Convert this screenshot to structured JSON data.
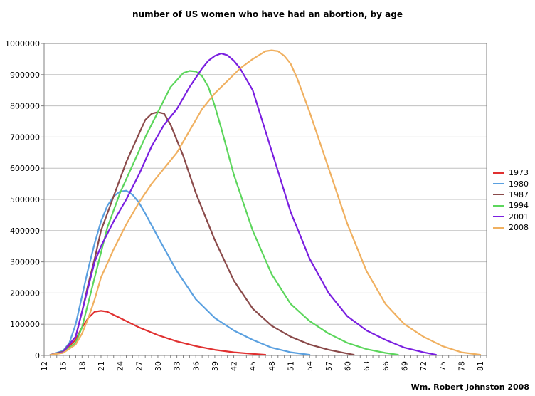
{
  "chart_data": {
    "type": "line",
    "title": "number of US women who have had an abortion, by age",
    "xlabel": "",
    "ylabel": "",
    "xlim": [
      12,
      82
    ],
    "ylim": [
      0,
      1000000
    ],
    "y_ticks": [
      0,
      100000,
      200000,
      300000,
      400000,
      500000,
      600000,
      700000,
      800000,
      900000,
      1000000
    ],
    "x_ticks": [
      12,
      15,
      18,
      21,
      24,
      27,
      30,
      33,
      36,
      39,
      42,
      45,
      48,
      51,
      54,
      57,
      60,
      63,
      66,
      69,
      72,
      75,
      78,
      81
    ],
    "grid": true,
    "legend_position": "right",
    "series": [
      {
        "name": "1973",
        "color": "#e03030",
        "x": [
          13,
          15,
          17,
          18,
          19,
          20,
          21,
          22,
          23,
          24,
          25,
          27,
          30,
          33,
          36,
          39,
          42,
          45,
          47
        ],
        "values": [
          2000,
          10000,
          50000,
          90000,
          120000,
          140000,
          143000,
          140000,
          130000,
          120000,
          110000,
          90000,
          65000,
          45000,
          30000,
          18000,
          10000,
          5000,
          2000
        ]
      },
      {
        "name": "1980",
        "color": "#5aa0e0",
        "x": [
          13,
          15,
          16,
          17,
          18,
          19,
          20,
          21,
          22,
          23,
          24,
          25,
          26,
          27,
          28,
          30,
          33,
          36,
          39,
          42,
          45,
          48,
          51,
          54
        ],
        "values": [
          2000,
          15000,
          40000,
          100000,
          190000,
          280000,
          360000,
          430000,
          480000,
          510000,
          525000,
          528000,
          515000,
          490000,
          455000,
          380000,
          270000,
          180000,
          120000,
          80000,
          50000,
          25000,
          10000,
          2000
        ]
      },
      {
        "name": "1987",
        "color": "#8a4a4a",
        "x": [
          13,
          15,
          17,
          18,
          19,
          20,
          21,
          23,
          25,
          27,
          28,
          29,
          30,
          31,
          32,
          33,
          34,
          36,
          39,
          42,
          45,
          48,
          51,
          54,
          57,
          60,
          61
        ],
        "values": [
          2000,
          12000,
          60000,
          140000,
          230000,
          310000,
          400000,
          510000,
          620000,
          710000,
          755000,
          775000,
          780000,
          775000,
          740000,
          690000,
          640000,
          520000,
          370000,
          240000,
          150000,
          95000,
          60000,
          35000,
          18000,
          6000,
          2000
        ]
      },
      {
        "name": "1994",
        "color": "#5cd65c",
        "x": [
          13,
          15,
          17,
          18,
          19,
          20,
          21,
          22,
          24,
          26,
          28,
          30,
          32,
          34,
          35,
          36,
          37,
          38,
          39,
          40,
          42,
          45,
          48,
          51,
          54,
          57,
          60,
          63,
          66,
          68
        ],
        "values": [
          2000,
          10000,
          40000,
          90000,
          170000,
          250000,
          330000,
          410000,
          520000,
          610000,
          700000,
          780000,
          860000,
          905000,
          912000,
          910000,
          895000,
          860000,
          800000,
          730000,
          580000,
          400000,
          260000,
          165000,
          110000,
          70000,
          40000,
          20000,
          8000,
          2000
        ]
      },
      {
        "name": "2001",
        "color": "#7a1fe0",
        "x": [
          13,
          15,
          17,
          18,
          19,
          20,
          21,
          23,
          25,
          27,
          29,
          31,
          33,
          35,
          37,
          38,
          39,
          40,
          41,
          42,
          43,
          45,
          47,
          49,
          51,
          54,
          57,
          60,
          63,
          66,
          69,
          72,
          74
        ],
        "values": [
          2000,
          10000,
          60000,
          140000,
          220000,
          300000,
          350000,
          430000,
          500000,
          580000,
          670000,
          740000,
          790000,
          860000,
          920000,
          945000,
          960000,
          968000,
          962000,
          945000,
          920000,
          850000,
          720000,
          590000,
          460000,
          310000,
          200000,
          125000,
          80000,
          50000,
          25000,
          10000,
          2000
        ]
      },
      {
        "name": "2008",
        "color": "#f0b060",
        "x": [
          13,
          15,
          17,
          18,
          19,
          20,
          21,
          23,
          25,
          27,
          29,
          31,
          33,
          35,
          37,
          39,
          41,
          43,
          45,
          47,
          48,
          49,
          50,
          51,
          52,
          54,
          57,
          60,
          63,
          66,
          69,
          72,
          75,
          78,
          81
        ],
        "values": [
          2000,
          8000,
          35000,
          70000,
          120000,
          180000,
          250000,
          340000,
          420000,
          490000,
          550000,
          600000,
          650000,
          720000,
          790000,
          840000,
          880000,
          920000,
          950000,
          975000,
          978000,
          975000,
          960000,
          935000,
          890000,
          780000,
          600000,
          420000,
          270000,
          165000,
          100000,
          60000,
          30000,
          10000,
          2000
        ]
      }
    ]
  },
  "credit": "Wm. Robert Johnston 2008"
}
